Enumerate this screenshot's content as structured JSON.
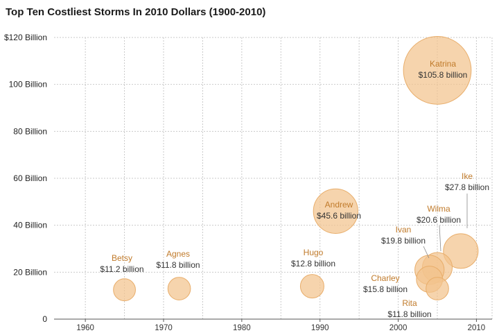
{
  "chart_data": {
    "type": "scatter",
    "title": "Top Ten Costliest Storms In 2010 Dollars (1900-2010)",
    "xlim": [
      1956,
      2012
    ],
    "ylim": [
      0,
      120
    ],
    "x_ticks": [
      "1960",
      "1970",
      "1980",
      "1990",
      "2000",
      "2010"
    ],
    "y_ticks": [
      "0",
      "20 Billion",
      "40 Billion",
      "60 Billion",
      "80 Billion",
      "100 Billion",
      "$120 Billion"
    ],
    "grid": true,
    "bubble_color": "#f2c48d",
    "bubble_stroke": "#e8ad6a",
    "name_color": "#c07a2a",
    "points": [
      {
        "name": "Betsy",
        "label": "$11.2 billion",
        "x": 1965,
        "y": 12.5,
        "value": 11.2
      },
      {
        "name": "Agnes",
        "label": "$11.8 billion",
        "x": 1972,
        "y": 13,
        "value": 11.8
      },
      {
        "name": "Hugo",
        "label": "$12.8 billion",
        "x": 1989,
        "y": 14,
        "value": 12.8
      },
      {
        "name": "Andrew",
        "label": "$45.6 billion",
        "x": 1992,
        "y": 46,
        "value": 45.6
      },
      {
        "name": "Charley",
        "label": "$15.8 billion",
        "x": 2004,
        "y": 17,
        "value": 15.8
      },
      {
        "name": "Ivan",
        "label": "$19.8 billion",
        "x": 2004,
        "y": 21,
        "value": 19.8
      },
      {
        "name": "Wilma",
        "label": "$20.6 billion",
        "x": 2005,
        "y": 22,
        "value": 20.6
      },
      {
        "name": "Rita",
        "label": "$11.8 billion",
        "x": 2005,
        "y": 13,
        "value": 11.8
      },
      {
        "name": "Katrina",
        "label": "$105.8 billion",
        "x": 2005,
        "y": 106,
        "value": 105.8
      },
      {
        "name": "Ike",
        "label": "$27.8 billion",
        "x": 2008,
        "y": 29,
        "value": 27.8
      }
    ]
  }
}
